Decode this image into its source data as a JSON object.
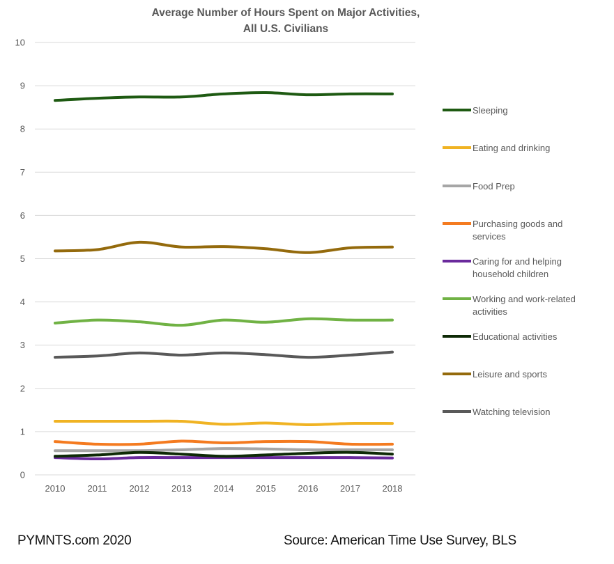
{
  "chart_data": {
    "type": "line",
    "title": [
      "Average Number of Hours Spent on Major Activities,",
      "All U.S. Civilians"
    ],
    "xlabel": "",
    "ylabel": "",
    "x": [
      "2010",
      "2011",
      "2012",
      "2013",
      "2014",
      "2015",
      "2016",
      "2017",
      "2018"
    ],
    "ylim": [
      0,
      10
    ],
    "yticks": [
      0,
      1,
      2,
      3,
      4,
      5,
      6,
      7,
      8,
      9,
      10
    ],
    "grid": true,
    "legend_position": "right",
    "series": [
      {
        "name": "Sleeping",
        "color": "#1e5a12",
        "values": [
          8.66,
          8.71,
          8.74,
          8.74,
          8.81,
          8.84,
          8.79,
          8.81,
          8.81
        ]
      },
      {
        "name": "Eating and drinking",
        "color": "#f0b323",
        "values": [
          1.24,
          1.24,
          1.24,
          1.24,
          1.17,
          1.2,
          1.16,
          1.19,
          1.19
        ]
      },
      {
        "name": "Food Prep",
        "color": "#a6a6a6",
        "values": [
          0.56,
          0.56,
          0.56,
          0.58,
          0.61,
          0.6,
          0.58,
          0.58,
          0.58
        ]
      },
      {
        "name": "Purchasing goods and services",
        "color": "#f47b20",
        "values": [
          0.77,
          0.71,
          0.71,
          0.78,
          0.74,
          0.77,
          0.77,
          0.71,
          0.71
        ]
      },
      {
        "name": "Caring for and helping household children",
        "color": "#6a2a9c",
        "values": [
          0.4,
          0.37,
          0.4,
          0.4,
          0.4,
          0.4,
          0.4,
          0.4,
          0.39
        ]
      },
      {
        "name": "Working and work-related activities",
        "color": "#70b244",
        "values": [
          3.51,
          3.58,
          3.54,
          3.46,
          3.58,
          3.53,
          3.61,
          3.58,
          3.58
        ]
      },
      {
        "name": "Educational activities",
        "color": "#0e2a06",
        "values": [
          0.43,
          0.46,
          0.52,
          0.48,
          0.43,
          0.46,
          0.5,
          0.52,
          0.48
        ]
      },
      {
        "name": "Leisure and sports",
        "color": "#946a0c",
        "values": [
          5.18,
          5.21,
          5.38,
          5.27,
          5.28,
          5.23,
          5.14,
          5.25,
          5.27
        ]
      },
      {
        "name": "Watching television",
        "color": "#595959",
        "values": [
          2.72,
          2.75,
          2.82,
          2.77,
          2.82,
          2.78,
          2.72,
          2.77,
          2.84
        ]
      }
    ],
    "legend": [
      {
        "lines": [
          "Sleeping"
        ]
      },
      {
        "lines": [
          "Eating and drinking"
        ]
      },
      {
        "lines": [
          "Food Prep"
        ]
      },
      {
        "lines": [
          "Purchasing goods and",
          "services"
        ]
      },
      {
        "lines": [
          "Caring for and helping",
          "household children"
        ]
      },
      {
        "lines": [
          "Working and work-related",
          "activities"
        ]
      },
      {
        "lines": [
          "Educational activities"
        ]
      },
      {
        "lines": [
          "Leisure and sports"
        ]
      },
      {
        "lines": [
          "Watching television"
        ]
      }
    ]
  },
  "footer": {
    "left": "PYMNTS.com 2020",
    "right": "Source: American Time Use Survey, BLS"
  }
}
